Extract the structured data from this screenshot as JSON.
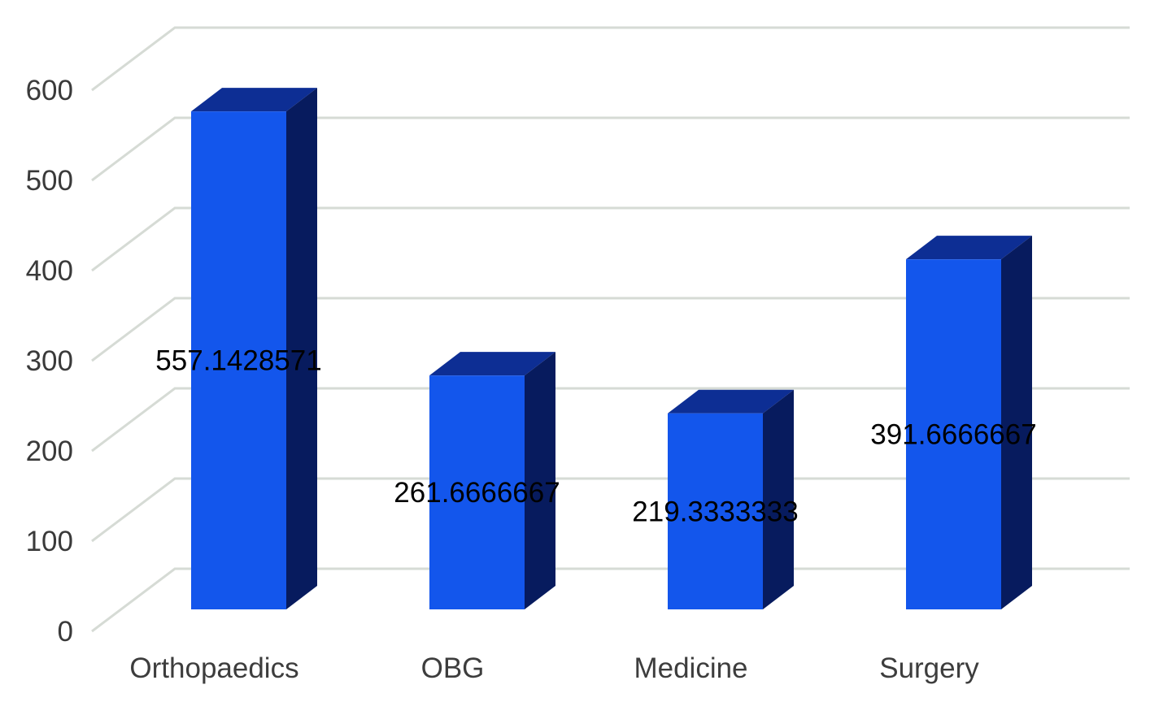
{
  "chart_data": {
    "type": "bar",
    "variant": "3d-clustered-column",
    "title": "",
    "xlabel": "",
    "ylabel": "",
    "categories": [
      "Orthopaedics",
      "OBG",
      "Medicine",
      "Surgery"
    ],
    "series": [
      {
        "name": "Series 1",
        "values": [
          557.1428571,
          261.6666667,
          219.3333333,
          391.6666667
        ],
        "data_labels": [
          "557.1428571",
          "261.6666667",
          "219.3333333",
          "391.6666667"
        ]
      }
    ],
    "ylim": [
      0,
      600
    ],
    "y_ticks": [
      0,
      100,
      200,
      300,
      400,
      500,
      600
    ],
    "y_tick_labels": [
      "0",
      "100",
      "200",
      "300",
      "400",
      "500",
      "600"
    ],
    "grid": true,
    "legend": false,
    "data_label_position": "center-of-front-face",
    "colors": {
      "background": "#ffffff",
      "bar_front": "#1356ec",
      "bar_top": "#0d2e94",
      "bar_side": "#071b5e",
      "gridline": "#d6dbd5",
      "axis_tick_label": "#3a3a3a",
      "category_label": "#3d3d3d",
      "data_label": "#000000"
    }
  }
}
